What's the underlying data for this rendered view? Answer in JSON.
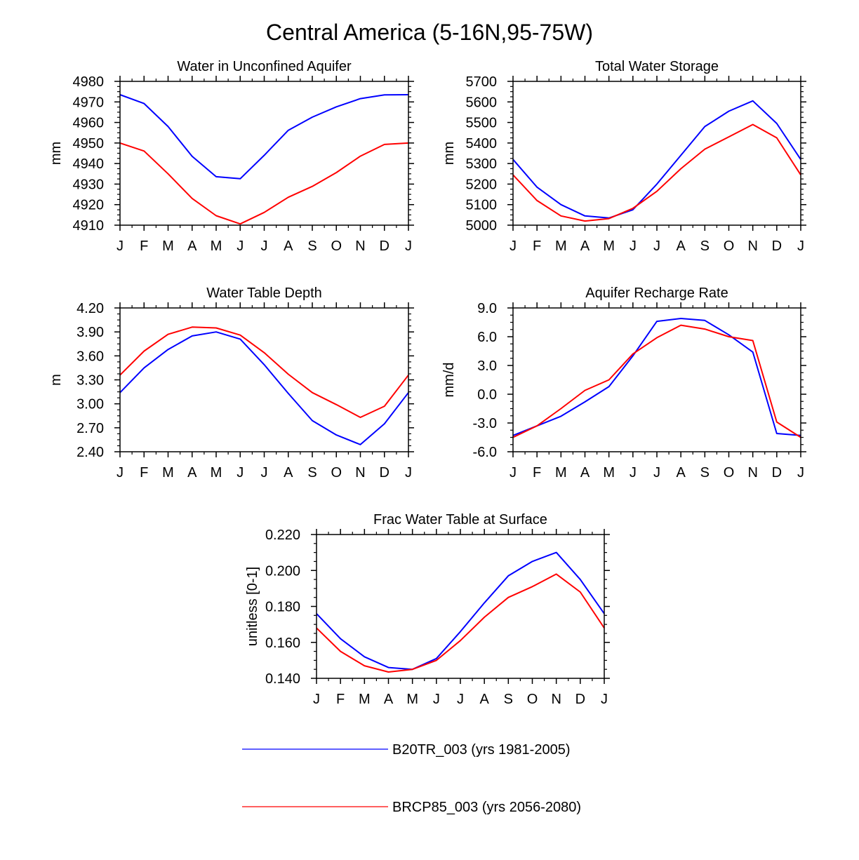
{
  "title": "Central America (5-16N,95-75W)",
  "colors": {
    "series1": "#0000ff",
    "series2": "#ff0000",
    "axis": "#000000"
  },
  "legend": {
    "placement": "bottom-center",
    "entries": [
      {
        "label": "B20TR_003 (yrs 1981-2005)",
        "color": "#0000ff"
      },
      {
        "label": "BRCP85_003 (yrs 2056-2080)",
        "color": "#ff0000"
      }
    ]
  },
  "chart_data": [
    {
      "type": "line",
      "title": "Water in Unconfined Aquifer",
      "ylabel": "mm",
      "xlabel": "",
      "categories": [
        "J",
        "F",
        "M",
        "A",
        "M",
        "J",
        "J",
        "A",
        "S",
        "O",
        "N",
        "D",
        "J"
      ],
      "ylim": [
        4910,
        4980
      ],
      "yticks": [
        4910,
        4920,
        4930,
        4940,
        4950,
        4960,
        4970,
        4980
      ],
      "ytick_labels": [
        "4910",
        "4920",
        "4930",
        "4940",
        "4950",
        "4960",
        "4970",
        "4980"
      ],
      "series": [
        {
          "name": "B20TR_003 (yrs 1981-2005)",
          "color": "#0000ff",
          "values": [
            4973.5,
            4969.2,
            4958,
            4943.5,
            4933.6,
            4932.6,
            4944,
            4956.2,
            4962.6,
            4967.6,
            4971.6,
            4973.4,
            4973.5
          ]
        },
        {
          "name": "BRCP85_003 (yrs 2056-2080)",
          "color": "#ff0000",
          "values": [
            4950,
            4946.1,
            4935,
            4923,
            4914.6,
            4910.6,
            4916.2,
            4923.6,
            4928.9,
            4935.6,
            4943.6,
            4949.3,
            4950
          ]
        }
      ]
    },
    {
      "type": "line",
      "title": "Total Water Storage",
      "ylabel": "mm",
      "xlabel": "",
      "categories": [
        "J",
        "F",
        "M",
        "A",
        "M",
        "J",
        "J",
        "A",
        "S",
        "O",
        "N",
        "D",
        "J"
      ],
      "ylim": [
        5000,
        5700
      ],
      "yticks": [
        5000,
        5100,
        5200,
        5300,
        5400,
        5500,
        5600,
        5700
      ],
      "ytick_labels": [
        "5000",
        "5100",
        "5200",
        "5300",
        "5400",
        "5500",
        "5600",
        "5700"
      ],
      "series": [
        {
          "name": "B20TR_003 (yrs 1981-2005)",
          "color": "#0000ff",
          "values": [
            5320,
            5185,
            5100,
            5045,
            5035,
            5075,
            5200,
            5340,
            5480,
            5555,
            5605,
            5495,
            5320
          ]
        },
        {
          "name": "BRCP85_003 (yrs 2056-2080)",
          "color": "#ff0000",
          "values": [
            5245,
            5120,
            5045,
            5020,
            5032,
            5082,
            5165,
            5275,
            5370,
            5430,
            5490,
            5425,
            5245
          ]
        }
      ]
    },
    {
      "type": "line",
      "title": "Water Table Depth",
      "ylabel": "m",
      "xlabel": "",
      "categories": [
        "J",
        "F",
        "M",
        "A",
        "M",
        "J",
        "J",
        "A",
        "S",
        "O",
        "N",
        "D",
        "J"
      ],
      "ylim": [
        2.4,
        4.2
      ],
      "yticks": [
        2.4,
        2.7,
        3.0,
        3.3,
        3.6,
        3.9,
        4.2
      ],
      "ytick_labels": [
        "2.40",
        "2.70",
        "3.00",
        "3.30",
        "3.60",
        "3.90",
        "4.20"
      ],
      "series": [
        {
          "name": "B20TR_003 (yrs 1981-2005)",
          "color": "#0000ff",
          "values": [
            3.14,
            3.45,
            3.68,
            3.85,
            3.9,
            3.81,
            3.49,
            3.13,
            2.79,
            2.61,
            2.49,
            2.75,
            3.14
          ]
        },
        {
          "name": "BRCP85_003 (yrs 2056-2080)",
          "color": "#ff0000",
          "values": [
            3.36,
            3.66,
            3.87,
            3.96,
            3.95,
            3.86,
            3.64,
            3.37,
            3.14,
            2.99,
            2.83,
            2.97,
            3.36
          ]
        }
      ]
    },
    {
      "type": "line",
      "title": "Aquifer Recharge Rate",
      "ylabel": "mm/d",
      "xlabel": "",
      "categories": [
        "J",
        "F",
        "M",
        "A",
        "M",
        "J",
        "J",
        "A",
        "S",
        "O",
        "N",
        "D",
        "J"
      ],
      "ylim": [
        -6,
        9
      ],
      "yticks": [
        -6,
        -3,
        0,
        3,
        6,
        9
      ],
      "ytick_labels": [
        "-6.0",
        "-3.0",
        "0.0",
        "3.0",
        "6.0",
        "9.0"
      ],
      "series": [
        {
          "name": "B20TR_003 (yrs 1981-2005)",
          "color": "#0000ff",
          "values": [
            -4.3,
            -3.3,
            -2.3,
            -0.8,
            0.8,
            4.0,
            7.6,
            7.9,
            7.7,
            6.2,
            4.4,
            -4.1,
            -4.3
          ]
        },
        {
          "name": "BRCP85_003 (yrs 2056-2080)",
          "color": "#ff0000",
          "values": [
            -4.5,
            -3.3,
            -1.5,
            0.4,
            1.5,
            4.2,
            5.9,
            7.2,
            6.8,
            6.0,
            5.6,
            -2.9,
            -4.5
          ]
        }
      ]
    },
    {
      "type": "line",
      "title": "Frac Water Table at Surface",
      "ylabel": "unitless [0-1]",
      "xlabel": "",
      "categories": [
        "J",
        "F",
        "M",
        "A",
        "M",
        "J",
        "J",
        "A",
        "S",
        "O",
        "N",
        "D",
        "J"
      ],
      "ylim": [
        0.14,
        0.22
      ],
      "yticks": [
        0.14,
        0.16,
        0.18,
        0.2,
        0.22
      ],
      "ytick_labels": [
        "0.140",
        "0.160",
        "0.180",
        "0.200",
        "0.220"
      ],
      "series": [
        {
          "name": "B20TR_003 (yrs 1981-2005)",
          "color": "#0000ff",
          "values": [
            0.176,
            0.162,
            0.152,
            0.146,
            0.145,
            0.151,
            0.166,
            0.182,
            0.197,
            0.205,
            0.21,
            0.195,
            0.176
          ]
        },
        {
          "name": "BRCP85_003 (yrs 2056-2080)",
          "color": "#ff0000",
          "values": [
            0.168,
            0.155,
            0.147,
            0.1435,
            0.145,
            0.15,
            0.161,
            0.174,
            0.185,
            0.191,
            0.198,
            0.188,
            0.168
          ]
        }
      ]
    }
  ]
}
